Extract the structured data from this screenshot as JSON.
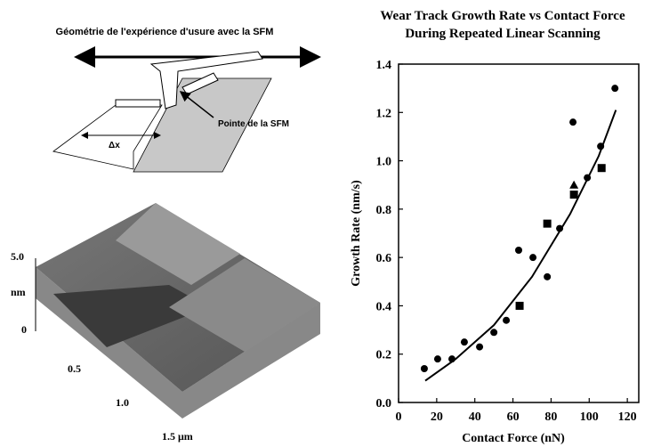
{
  "diagram": {
    "title": "Géométrie de l'expérience d'usure avec la SFM",
    "tip_label": "Pointe de la SFM",
    "dx_label": "Δx"
  },
  "afm_image": {
    "z_labels": [
      "5.0",
      "nm",
      "0"
    ],
    "xy_labels": [
      "0.5",
      "1.0",
      "1.5 μm"
    ]
  },
  "chart_data": {
    "type": "scatter",
    "title": "Wear Track Growth Rate vs Contact Force",
    "subtitle": "During Repeated Linear Scanning",
    "x_label": "Contact Force (nN)",
    "y_label": "Growth Rate (nm/s)",
    "xlim": [
      0,
      126
    ],
    "ylim": [
      0,
      1.4
    ],
    "xticks": [
      0,
      20,
      40,
      60,
      80,
      100,
      120
    ],
    "yticks": [
      {
        "value": 0,
        "label": "0.0"
      },
      0.2,
      0.4,
      0.6,
      0.8,
      {
        "value": 1,
        "label": "1.0"
      },
      1.2,
      1.4
    ],
    "series": [
      {
        "marker": "circle",
        "color": "#000000",
        "x": [
          13.5,
          20.5,
          28,
          34.5,
          42.5,
          50,
          56.5,
          63,
          70.5,
          78,
          84.5,
          91.5,
          99,
          106,
          113.5
        ],
        "values": [
          0.14,
          0.18,
          0.18,
          0.25,
          0.23,
          0.29,
          0.34,
          0.63,
          0.6,
          0.52,
          0.72,
          1.16,
          0.93,
          1.06,
          1.3
        ]
      },
      {
        "marker": "square",
        "color": "#000000",
        "x": [
          63.5,
          78,
          92,
          106.5
        ],
        "values": [
          0.4,
          0.74,
          0.86,
          0.97
        ]
      },
      {
        "marker": "triangle",
        "color": "#000000",
        "x": [
          92
        ],
        "values": [
          0.9
        ]
      },
      {
        "marker": "line",
        "color": "#000000",
        "x": [
          14,
          30,
          50,
          70,
          90,
          105,
          114
        ],
        "values": [
          0.09,
          0.18,
          0.32,
          0.52,
          0.78,
          1.02,
          1.21
        ]
      }
    ]
  }
}
